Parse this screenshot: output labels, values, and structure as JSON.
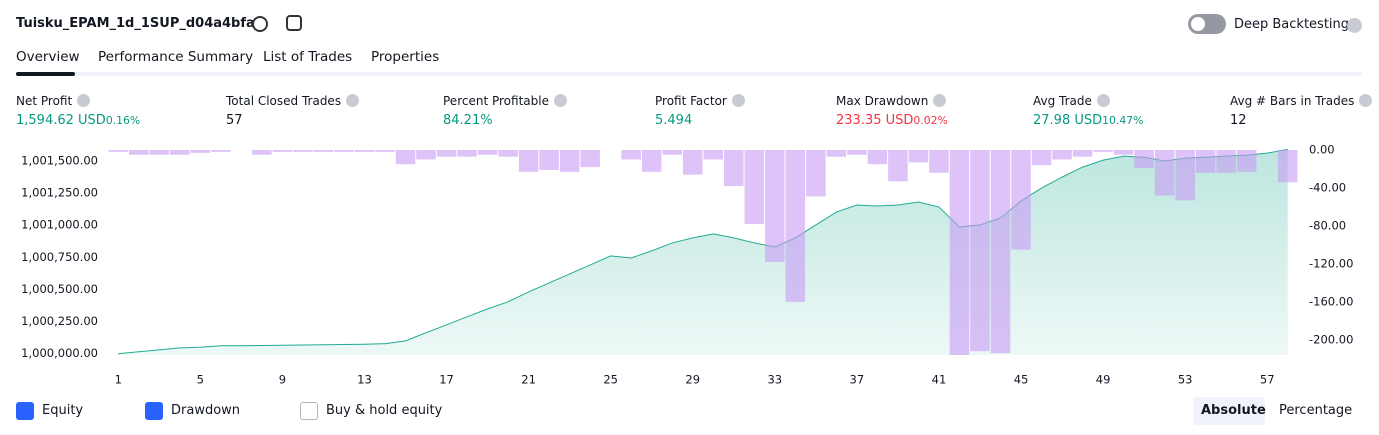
{
  "header": {
    "title": "Tuisku_EPAM_1d_1SUP_d04a4bfa",
    "toggle_label": "Deep Backtesting"
  },
  "tabs": [
    "Overview",
    "Performance Summary",
    "List of Trades",
    "Properties"
  ],
  "metrics": [
    {
      "label": "Net Profit",
      "value": "1,594.62 USD",
      "percent": "0.16%",
      "color": "#089981"
    },
    {
      "label": "Total Closed Trades",
      "value": "57",
      "color": "#131722"
    },
    {
      "label": "Percent Profitable",
      "value": "84.21%",
      "color": "#089981"
    },
    {
      "label": "Profit Factor",
      "value": "5.494",
      "color": "#089981"
    },
    {
      "label": "Max Drawdown",
      "value": "233.35 USD",
      "percent": "0.02%",
      "color": "#f23645"
    },
    {
      "label": "Avg Trade",
      "value": "27.98 USD",
      "percent": "10.47%",
      "color": "#089981"
    },
    {
      "label": "Avg # Bars in Trades",
      "value": "12",
      "color": "#131722"
    }
  ],
  "chart_data": {
    "type": "combo",
    "x": [
      1,
      2,
      3,
      4,
      5,
      6,
      7,
      8,
      9,
      10,
      11,
      12,
      13,
      14,
      15,
      16,
      17,
      18,
      19,
      20,
      21,
      22,
      23,
      24,
      25,
      26,
      27,
      28,
      29,
      30,
      31,
      32,
      33,
      34,
      35,
      36,
      37,
      38,
      39,
      40,
      41,
      42,
      43,
      44,
      45,
      46,
      47,
      48,
      49,
      50,
      51,
      52,
      53,
      54,
      55,
      56,
      57,
      58
    ],
    "xlim": [
      0.5,
      58.5
    ],
    "xticks": [
      1,
      5,
      9,
      13,
      17,
      21,
      25,
      29,
      33,
      37,
      41,
      45,
      49,
      53,
      57
    ],
    "ylim": [
      999990,
      1001585
    ],
    "yticks": [
      {
        "value": 1000000,
        "label": "1,000,000.00"
      },
      {
        "value": 1000250,
        "label": "1,000,250.00"
      },
      {
        "value": 1000500,
        "label": "1,000,500.00"
      },
      {
        "value": 1000750,
        "label": "1,000,750.00"
      },
      {
        "value": 1001000,
        "label": "1,001,000.00"
      },
      {
        "value": 1001250,
        "label": "1,001,250.00"
      },
      {
        "value": 1001500,
        "label": "1,001,500.00"
      }
    ],
    "y2lim": [
      -216,
      0
    ],
    "y2ticks": [
      {
        "value": 0,
        "label": "0.00"
      },
      {
        "value": -40,
        "label": "-40.00"
      },
      {
        "value": -80,
        "label": "-80.00"
      },
      {
        "value": -120,
        "label": "-120.00"
      },
      {
        "value": -160,
        "label": "-160.00"
      },
      {
        "value": -200,
        "label": "-200.00"
      }
    ],
    "series": [
      {
        "name": "Equity",
        "type": "area",
        "color": "#22ab94",
        "values": [
          1000000,
          1000015,
          1000030,
          1000045,
          1000050,
          1000062,
          1000062,
          1000064,
          1000066,
          1000068,
          1000070,
          1000072,
          1000074,
          1000078,
          1000100,
          1000163,
          1000225,
          1000287,
          1000349,
          1000404,
          1000481,
          1000551,
          1000621,
          1000691,
          1000761,
          1000745,
          1000800,
          1000862,
          1000901,
          1000932,
          1000901,
          1000862,
          1000831,
          1000901,
          1001002,
          1001102,
          1001157,
          1001149,
          1001157,
          1001180,
          1001141,
          1000986,
          1001002,
          1001056,
          1001188,
          1001289,
          1001374,
          1001452,
          1001506,
          1001537,
          1001529,
          1001499,
          1001522,
          1001529,
          1001537,
          1001545,
          1001561,
          1001590
        ]
      },
      {
        "name": "Drawdown",
        "type": "bar",
        "axis": "y2",
        "color": "#c89bf5",
        "values": [
          -2,
          -5,
          -5,
          -5,
          -3,
          -2,
          0,
          -5,
          -2,
          -2,
          -2,
          -2,
          -2,
          -2,
          -15,
          -10,
          -7,
          -7,
          -5,
          -7,
          -23,
          -21,
          -23,
          -18,
          0,
          -10,
          -23,
          -5,
          -26,
          -10,
          -38,
          -78,
          -118,
          -160,
          -49,
          -7,
          -5,
          -15,
          -33,
          -13,
          -24,
          -216,
          -212,
          -214,
          -105,
          -16,
          -10,
          -7,
          -2,
          -5,
          -19,
          -48,
          -53,
          -24,
          -24,
          -23,
          0,
          -34
        ]
      }
    ]
  },
  "legend_extra": "Buy & hold equity",
  "view_buttons": [
    "Absolute",
    "Percentage"
  ]
}
